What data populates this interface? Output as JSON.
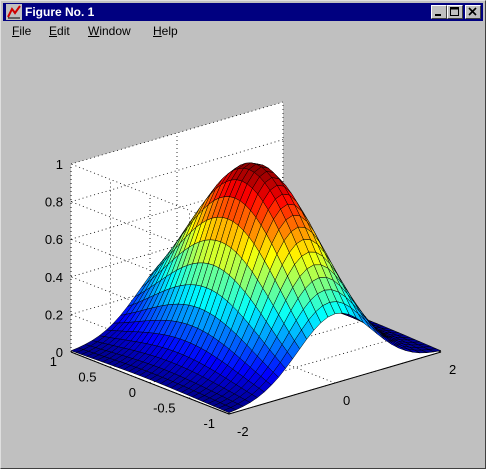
{
  "window": {
    "title": "Figure No. 1",
    "controls": [
      "minimize",
      "maximize",
      "close"
    ]
  },
  "menu": {
    "items": [
      {
        "label": "File",
        "accel": "F"
      },
      {
        "label": "Edit",
        "accel": "E"
      },
      {
        "label": "Window",
        "accel": "W"
      },
      {
        "label": "Help",
        "accel": "H"
      }
    ]
  },
  "chart_data": {
    "type": "surface",
    "function": "z = exp(-x^2 - y^2)",
    "x_range": [
      -2,
      2
    ],
    "y_range": [
      -1,
      1
    ],
    "z_range": [
      0,
      1
    ],
    "grid": true,
    "colormap": "jet",
    "x_ticks": [
      "-2",
      "0",
      "2"
    ],
    "y_ticks": [
      "-1",
      "-0.5",
      "0",
      "0.5",
      "1"
    ],
    "z_ticks": [
      "0",
      "0.2",
      "0.4",
      "0.6",
      "0.8",
      "1"
    ]
  }
}
